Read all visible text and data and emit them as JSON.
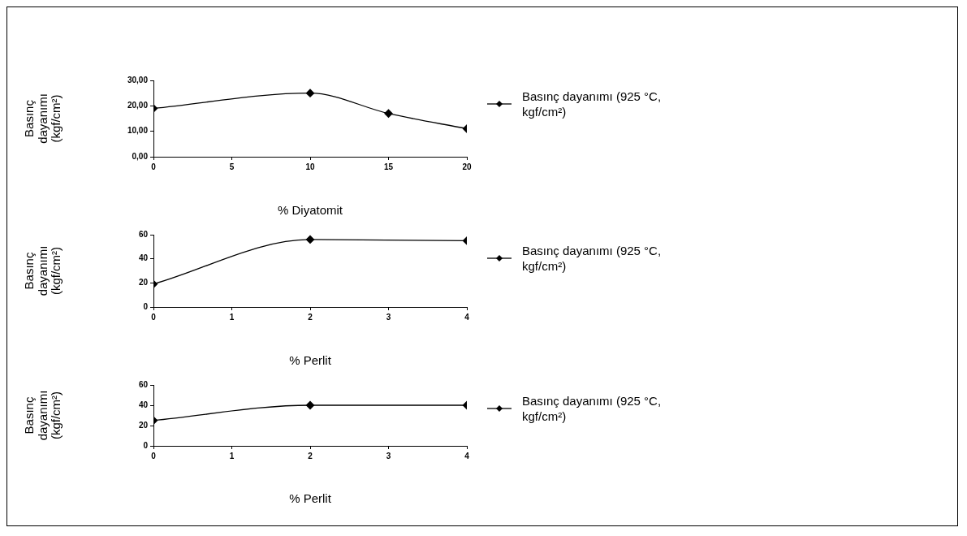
{
  "chart_data": [
    {
      "type": "line",
      "xlabel": "% Diyatomit",
      "ylabel": "Basınç dayanımı (kgf/cm²)",
      "x": [
        0,
        10,
        15,
        20
      ],
      "series": [
        {
          "name": "Basınç dayanımı (925 °C, kgf/cm²)",
          "color": "#000000",
          "values": [
            19,
            25,
            17,
            11
          ]
        }
      ],
      "xlim": [
        0,
        20
      ],
      "xticks": [
        0,
        5,
        10,
        15,
        20
      ],
      "ylim": [
        0,
        30
      ],
      "yticks": [
        {
          "value": 0,
          "label": "0,00"
        },
        {
          "value": 10,
          "label": "10,00"
        },
        {
          "value": 20,
          "label": "20,00"
        },
        {
          "value": 30,
          "label": "30,00"
        }
      ],
      "grid": false,
      "legend": "right",
      "marker": "diamond",
      "line_style": "solid"
    },
    {
      "type": "line",
      "xlabel": "% Perlit",
      "ylabel": "Basınç dayanımı (kgf/cm²)",
      "x": [
        0,
        2,
        4
      ],
      "series": [
        {
          "name": "Basınç dayanımı (925 °C, kgf/cm²)",
          "color": "#000000",
          "values": [
            19,
            56,
            55
          ]
        }
      ],
      "xlim": [
        0,
        4
      ],
      "xticks": [
        0,
        1,
        2,
        3,
        4
      ],
      "ylim": [
        0,
        60
      ],
      "yticks": [
        0,
        20,
        40,
        60
      ],
      "grid": false,
      "legend": "right",
      "marker": "diamond",
      "line_style": "solid"
    },
    {
      "type": "line",
      "xlabel": "% Perlit",
      "ylabel": "Basınç dayanımı (kgf/cm²)",
      "x": [
        0,
        2,
        4
      ],
      "series": [
        {
          "name": "Basınç dayanımı (925 °C, kgf/cm²)",
          "color": "#000000",
          "values": [
            25,
            40,
            40
          ]
        }
      ],
      "xlim": [
        0,
        4
      ],
      "xticks": [
        0,
        1,
        2,
        3,
        4
      ],
      "ylim": [
        0,
        60
      ],
      "yticks": [
        0,
        20,
        40,
        60
      ],
      "grid": false,
      "legend": "right",
      "marker": "diamond",
      "line_style": "solid"
    }
  ]
}
